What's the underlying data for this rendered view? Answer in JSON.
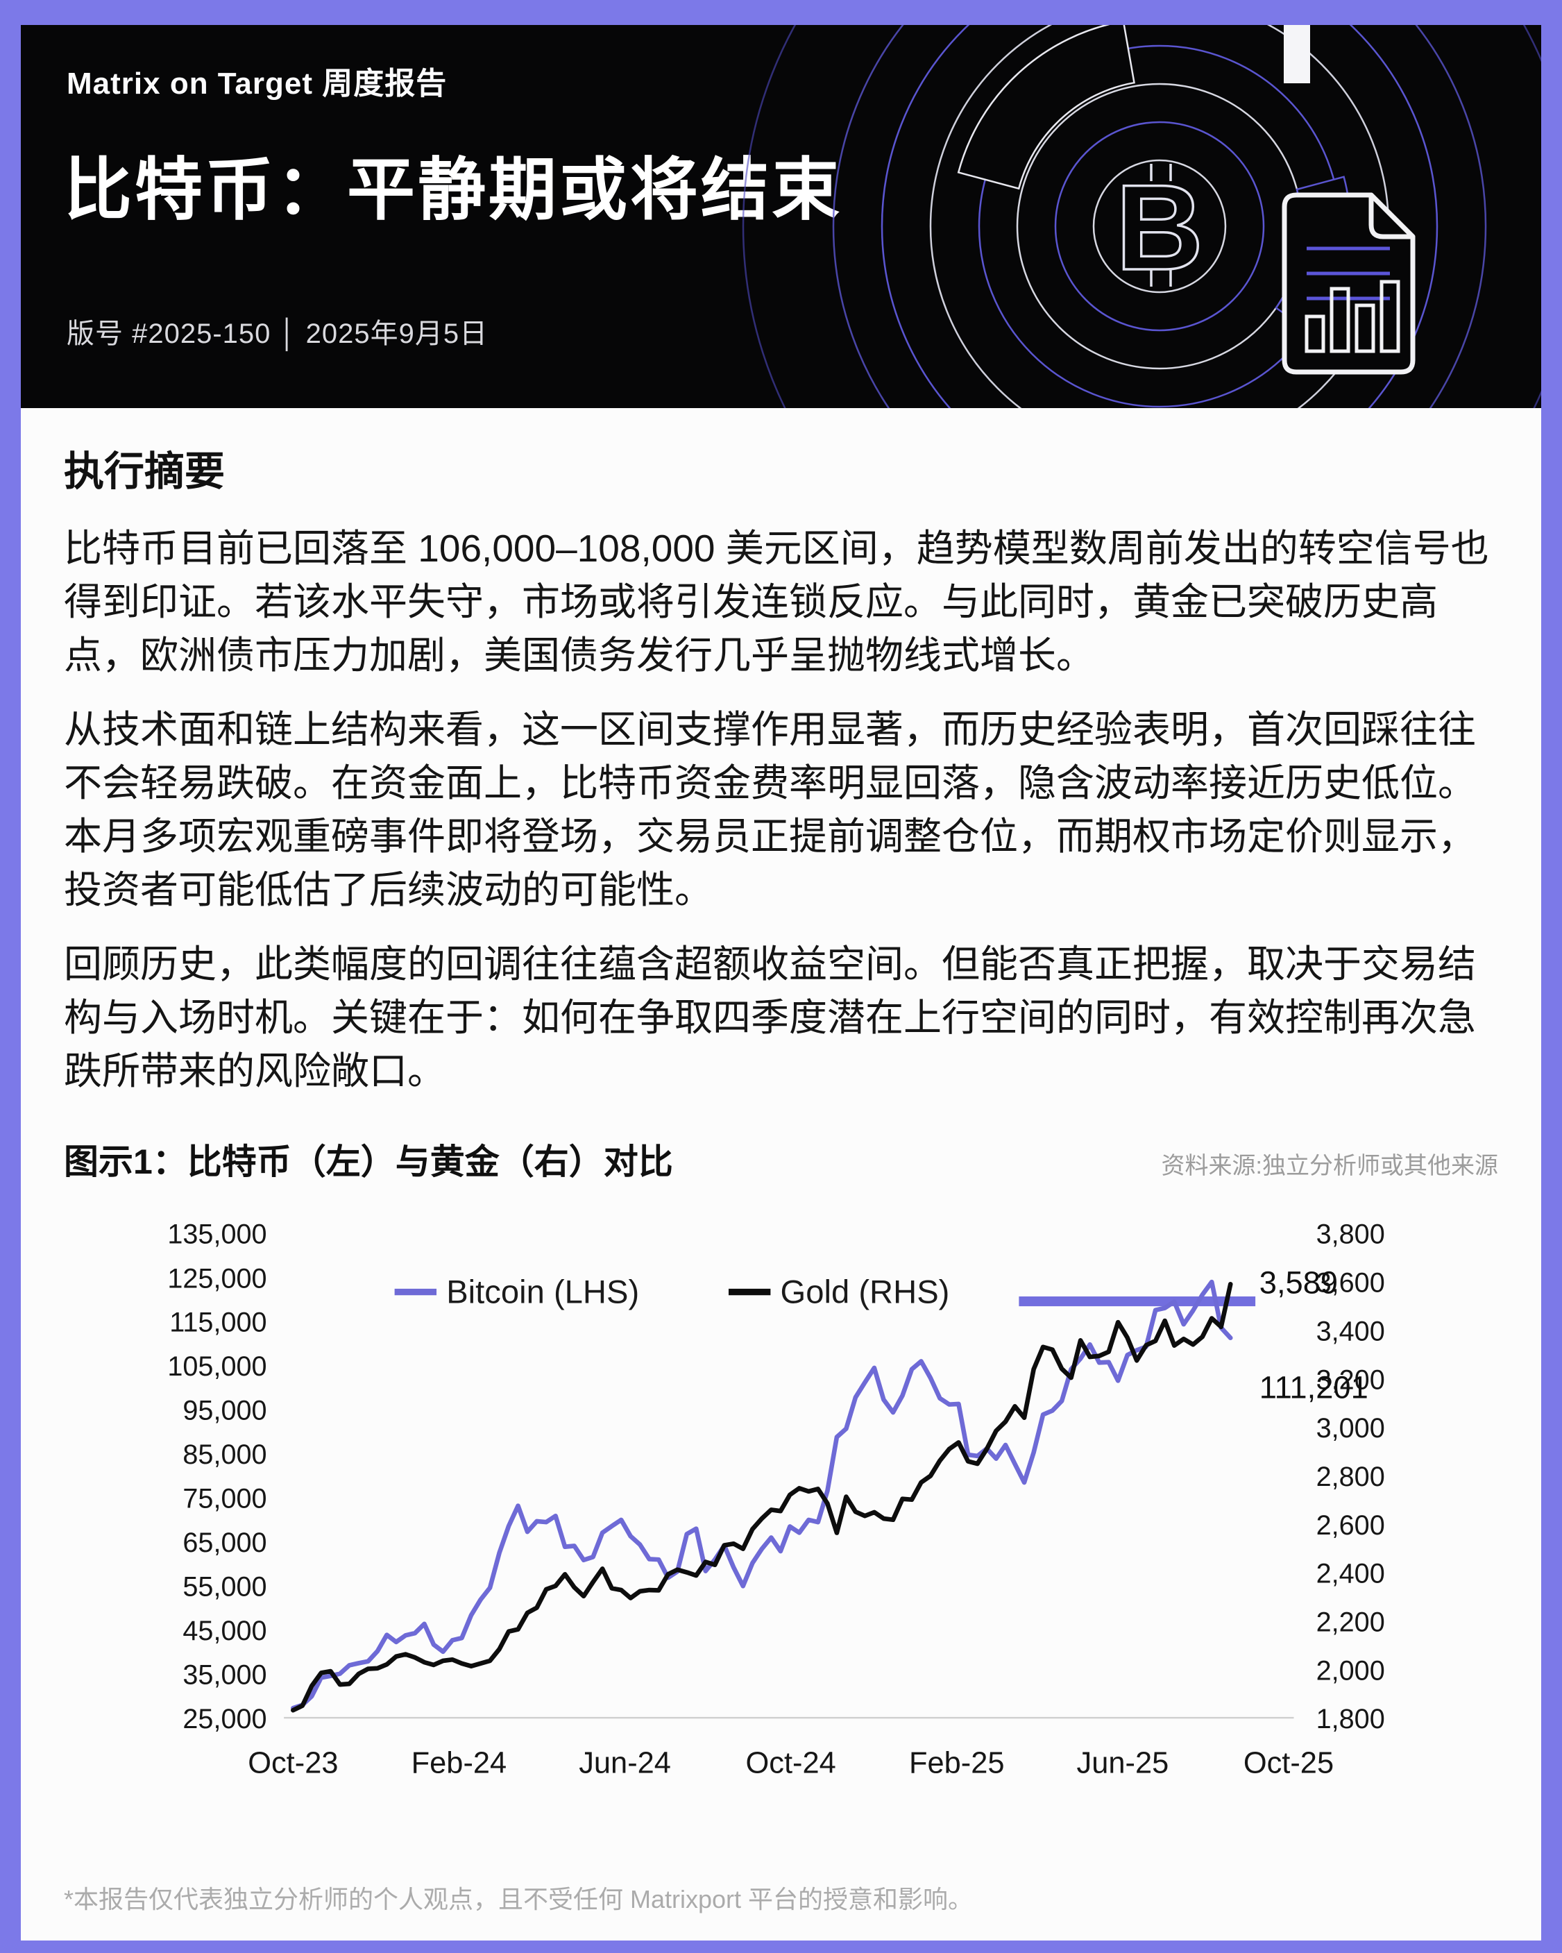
{
  "header": {
    "kicker": "Matrix on Target 周度报告",
    "title": "比特币：平静期或将结束",
    "meta": "版号 #2025-150 │ 2025年9月5日"
  },
  "summary": {
    "heading": "执行摘要",
    "paragraphs": [
      "比特币目前已回落至 106,000–108,000 美元区间，趋势模型数周前发出的转空信号也得到印证。若该水平失守，市场或将引发连锁反应。与此同时，黄金已突破历史高点，欧洲债市压力加剧，美国债务发行几乎呈抛物线式增长。",
      "从技术面和链上结构来看，这一区间支撑作用显著，而历史经验表明，首次回踩往往不会轻易跌破。在资金面上，比特币资金费率明显回落，隐含波动率接近历史低位。本月多项宏观重磅事件即将登场，交易员正提前调整仓位，而期权市场定价则显示，投资者可能低估了后续波动的可能性。",
      "回顾历史，此类幅度的回调往往蕴含超额收益空间。但能否真正把握，取决于交易结构与入场时机。关键在于：如何在争取四季度潜在上行空间的同时，有效控制再次急跌所带来的风险敞口。"
    ]
  },
  "figure": {
    "caption": "图示1：比特币（左）与黄金（右）对比",
    "source": "资料来源:独立分析师或其他来源"
  },
  "footer": {
    "disclaimer": "*本报告仅代表独立分析师的个人观点，且不受任何 Matrixport 平台的授意和影响。"
  },
  "colors": {
    "page_border": "#7c79e8",
    "header_bg": "#060607",
    "bitcoin_line": "#6e6ad6",
    "gold_line": "#0d0d0d",
    "resistance_line": "#6b67dd"
  },
  "chart_data": {
    "type": "line",
    "title": "比特币（左）与黄金（右）对比",
    "x_tick_labels": [
      "Oct-23",
      "Feb-24",
      "Jun-24",
      "Oct-24",
      "Feb-25",
      "Jun-25",
      "Oct-25"
    ],
    "months_span": 24,
    "data_start_month": 0,
    "data_end_month": 22.6,
    "grid": false,
    "left_axis": {
      "min": 25000,
      "max": 135000,
      "step": 10000,
      "labels": [
        "135,000",
        "125,000",
        "115,000",
        "105,000",
        "95,000",
        "85,000",
        "75,000",
        "65,000",
        "55,000",
        "45,000",
        "35,000",
        "25,000"
      ]
    },
    "right_axis": {
      "min": 1800,
      "max": 3800,
      "step": 200,
      "labels": [
        "3,800",
        "3,600",
        "3,400",
        "3,200",
        "3,000",
        "2,800",
        "2,600",
        "2,400",
        "2,200",
        "2,000",
        "1,800"
      ]
    },
    "legend": [
      {
        "label": "Bitcoin (LHS)",
        "color": "#6e6ad6"
      },
      {
        "label": "Gold (RHS)",
        "color": "#0d0d0d"
      }
    ],
    "series": [
      {
        "name": "Bitcoin (LHS)",
        "axis": "left",
        "color": "#6e6ad6",
        "values": [
          27200,
          27900,
          29900,
          34100,
          34500,
          35000,
          36900,
          37400,
          37800,
          40100,
          43800,
          42200,
          43700,
          44200,
          46300,
          41600,
          40000,
          42600,
          43100,
          48300,
          51800,
          54500,
          62400,
          68500,
          73100,
          67200,
          69600,
          69400,
          70800,
          63800,
          64000,
          60800,
          61500,
          67000,
          68500,
          69900,
          66200,
          64300,
          61000,
          60900,
          56800,
          58200,
          66700,
          67900,
          58300,
          60900,
          64100,
          59100,
          54900,
          60100,
          63300,
          65900,
          62800,
          68400,
          67000,
          69900,
          69400,
          76500,
          88700,
          90600,
          97700,
          101100,
          104400,
          97200,
          94300,
          98100,
          104100,
          105900,
          102100,
          97500,
          96100,
          96200,
          84700,
          84400,
          86100,
          83800,
          86900,
          82600,
          78400,
          85200,
          93800,
          94700,
          96900,
          104100,
          106500,
          109700,
          105600,
          105700,
          101500,
          107300,
          108400,
          109200,
          117500,
          118000,
          119400,
          114300,
          117400,
          121000,
          123900,
          113500,
          111201
        ]
      },
      {
        "name": "Gold (RHS)",
        "axis": "right",
        "color": "#0d0d0d",
        "values": [
          1831,
          1850,
          1932,
          1985,
          1992,
          1937,
          1940,
          1981,
          2002,
          2004,
          2020,
          2053,
          2062,
          2049,
          2029,
          2018,
          2035,
          2040,
          2024,
          2013,
          2024,
          2035,
          2083,
          2156,
          2165,
          2233,
          2254,
          2330,
          2344,
          2392,
          2338,
          2302,
          2360,
          2415,
          2334,
          2327,
          2294,
          2322,
          2327,
          2326,
          2392,
          2411,
          2400,
          2387,
          2443,
          2431,
          2512,
          2518,
          2497,
          2578,
          2622,
          2658,
          2653,
          2720,
          2747,
          2734,
          2744,
          2684,
          2563,
          2712,
          2650,
          2633,
          2648,
          2622,
          2617,
          2703,
          2700,
          2771,
          2798,
          2861,
          2909,
          2936,
          2858,
          2848,
          2909,
          2984,
          3022,
          3085,
          3038,
          3238,
          3330,
          3319,
          3240,
          3203,
          3357,
          3289,
          3293,
          3310,
          3432,
          3368,
          3274,
          3337,
          3355,
          3438,
          3336,
          3363,
          3340,
          3372,
          3448,
          3413,
          3589
        ]
      }
    ],
    "annotations": {
      "gold_last_label": "3,589",
      "gold_last_value": 3589,
      "btc_last_label": "111,201",
      "btc_last_value": 111201,
      "resistance": {
        "level_left_axis": 119500,
        "from_month": 17.5,
        "to_month": 23.2,
        "color": "#6b67dd"
      }
    }
  }
}
